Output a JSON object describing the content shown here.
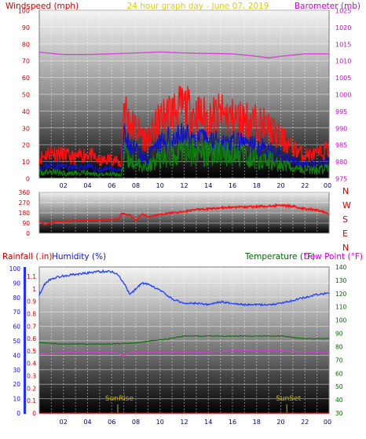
{
  "header": {
    "left_label": "Windspeed (mph)",
    "center_label": "24 hour graph day - June 07, 2019",
    "right_label": "Barometer (mb)"
  },
  "bottom_header": {
    "rainfall_label": "Rainfall (.in)",
    "humidity_label": "Humidity (%)",
    "temperature_label": "Temperature (°F)",
    "dewpoint_label": "Dew Point (°F)"
  },
  "colors": {
    "wind_axis": "#cc0000",
    "baro_axis": "#cc00cc",
    "gust": "#ff1010",
    "avg_wind": "#1010cc",
    "low_wind": "#108010",
    "barometer": "#d040d0",
    "direction": "#ff1010",
    "humidity": "#2040ff",
    "temperature": "#107010",
    "dewpoint": "#d040d0",
    "rainfall": "#cc0000",
    "temp_axis": "#006600",
    "sun": "#c8b400"
  },
  "chart_data": [
    {
      "type": "line",
      "name": "wind-barometer",
      "x_ticks": [
        "02",
        "04",
        "06",
        "08",
        "10",
        "12",
        "14",
        "16",
        "18",
        "20",
        "22",
        "00"
      ],
      "y_left_ticks": [
        "0",
        "10",
        "20",
        "30",
        "40",
        "50",
        "60",
        "70",
        "80",
        "90",
        "100"
      ],
      "y_right_ticks": [
        "975",
        "980",
        "985",
        "990",
        "995",
        "1000",
        "1005",
        "1010",
        "1015",
        "1020",
        "1025"
      ],
      "ylim_left": [
        0,
        100
      ],
      "ylim_right": [
        975,
        1025
      ],
      "xlim_hours": [
        0,
        24
      ],
      "series": [
        {
          "key": "gust",
          "x": [
            0,
            1,
            2,
            3,
            4,
            5,
            6,
            6.8,
            7,
            7.5,
            8,
            9,
            10,
            11,
            12,
            13,
            14,
            15,
            16,
            17,
            18,
            19,
            20,
            21,
            22,
            23,
            24
          ],
          "y": [
            12,
            16,
            14,
            12,
            15,
            10,
            12,
            8,
            45,
            32,
            30,
            22,
            35,
            40,
            42,
            38,
            36,
            38,
            36,
            35,
            33,
            30,
            24,
            18,
            14,
            14,
            18
          ]
        },
        {
          "key": "avg_wind",
          "x": [
            0,
            1,
            2,
            3,
            4,
            5,
            6,
            6.8,
            7,
            7.5,
            8,
            9,
            10,
            11,
            12,
            13,
            14,
            15,
            16,
            17,
            18,
            19,
            20,
            21,
            22,
            23,
            24
          ],
          "y": [
            6,
            8,
            7,
            6,
            7,
            5,
            6,
            4,
            25,
            18,
            16,
            12,
            20,
            24,
            25,
            22,
            22,
            22,
            21,
            20,
            19,
            17,
            13,
            10,
            8,
            8,
            10
          ]
        },
        {
          "key": "low_wind",
          "x": [
            0,
            1,
            2,
            3,
            4,
            5,
            6,
            6.8,
            7,
            7.5,
            8,
            9,
            10,
            11,
            12,
            13,
            14,
            15,
            16,
            17,
            18,
            19,
            20,
            21,
            22,
            23,
            24
          ],
          "y": [
            3,
            4,
            3,
            3,
            3,
            2,
            3,
            2,
            14,
            10,
            9,
            7,
            12,
            15,
            17,
            15,
            15,
            15,
            14,
            13,
            12,
            11,
            8,
            6,
            5,
            5,
            6
          ]
        },
        {
          "key": "barometer",
          "x": [
            0,
            2,
            4,
            6,
            8,
            10,
            12,
            14,
            16,
            18,
            19,
            20,
            22,
            24
          ],
          "y": [
            1012.5,
            1011.8,
            1011.8,
            1012,
            1012.3,
            1012.6,
            1012.3,
            1012.1,
            1012,
            1011.3,
            1010.8,
            1011.3,
            1012,
            1012
          ]
        }
      ]
    },
    {
      "type": "line",
      "name": "wind-direction",
      "y_ticks": [
        "360",
        "270",
        "180",
        "90",
        "0"
      ],
      "right_labels": [
        "N",
        "W",
        "S",
        "E",
        "N"
      ],
      "ylim": [
        0,
        360
      ],
      "series": [
        {
          "key": "direction",
          "x": [
            0,
            0.5,
            1,
            2,
            3,
            4,
            5,
            6,
            6.6,
            6.8,
            7.5,
            8,
            8.5,
            9,
            10,
            11,
            12,
            13,
            14,
            15,
            16,
            17,
            18,
            19,
            20,
            21,
            22,
            23,
            23.5,
            24
          ],
          "y": [
            110,
            75,
            95,
            105,
            110,
            115,
            118,
            120,
            125,
            175,
            160,
            110,
            170,
            145,
            165,
            180,
            190,
            210,
            215,
            225,
            230,
            232,
            235,
            240,
            245,
            238,
            215,
            205,
            190,
            165
          ]
        }
      ]
    },
    {
      "type": "line",
      "name": "humidity-temperature",
      "y_left_rain_ticks": [
        "0",
        "0.1",
        "0.2",
        "0.3",
        "0.4",
        "0.5",
        "0.6",
        "0.7",
        "0.8",
        "0.9",
        "1",
        "1.1"
      ],
      "y_left_hum_ticks": [
        "0",
        "10",
        "20",
        "30",
        "40",
        "50",
        "60",
        "70",
        "80",
        "90",
        "100"
      ],
      "y_right_ticks": [
        "30",
        "40",
        "50",
        "60",
        "70",
        "80",
        "90",
        "100",
        "110",
        "120",
        "130",
        "140"
      ],
      "ylim_humidity": [
        0,
        100
      ],
      "ylim_temperature": [
        30,
        140
      ],
      "annotations": [
        {
          "text": "SunRise",
          "hour": 6.5
        },
        {
          "text": "SunSet",
          "hour": 20.5
        }
      ],
      "series": [
        {
          "key": "humidity",
          "x": [
            0,
            0.5,
            1,
            2,
            3,
            4,
            5,
            6,
            6.5,
            7,
            7.5,
            8,
            8.5,
            9,
            10,
            11,
            12,
            13,
            14,
            15,
            16,
            17,
            18,
            19,
            20,
            21,
            22,
            23,
            24
          ],
          "y": [
            82,
            90,
            93,
            95,
            96,
            97,
            98,
            98,
            96,
            90,
            82,
            86,
            90,
            89,
            85,
            79,
            76,
            76,
            75,
            77,
            76,
            75,
            75,
            75,
            76,
            78,
            80,
            82,
            83
          ]
        },
        {
          "key": "temperature",
          "x": [
            0,
            2,
            4,
            6,
            8,
            10,
            12,
            14,
            16,
            18,
            20,
            22,
            24
          ],
          "y": [
            83,
            82,
            82,
            82,
            83,
            85,
            88,
            88,
            88,
            88,
            88,
            86,
            86
          ]
        },
        {
          "key": "dewpoint",
          "x": [
            0,
            1,
            2,
            4,
            6,
            6.5,
            7,
            7.5,
            8,
            10,
            12,
            14,
            16,
            18,
            20,
            22,
            24
          ],
          "y": [
            75,
            75,
            76,
            76,
            76,
            75,
            73,
            76,
            76,
            76,
            76,
            76,
            77,
            77,
            77,
            76,
            76
          ]
        },
        {
          "key": "rainfall",
          "x": [
            0,
            24
          ],
          "y": [
            0,
            0
          ]
        }
      ]
    }
  ]
}
